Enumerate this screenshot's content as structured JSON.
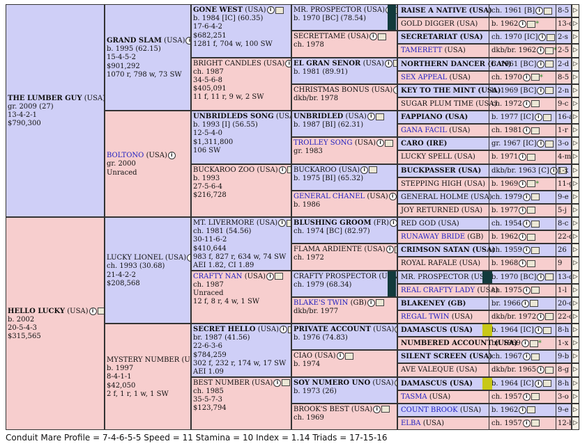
{
  "gen1": [
    {
      "name": "THE LUMBER GUY",
      "country": "(USA)",
      "lines": [
        "gr. 2009 (27)",
        "13-4-2-1",
        "$790,300"
      ],
      "sex": "m"
    },
    {
      "name": "HELLO LUCKY",
      "country": "(USA)",
      "lines": [
        "b. 2002",
        "20-5-4-3",
        "$315,565"
      ],
      "sex": "f"
    }
  ],
  "gen2": [
    {
      "name": "GRAND SLAM",
      "country": "(USA)",
      "lines": [
        "b. 1995 (62.15)",
        "15-4-5-2",
        "$901,292",
        "1070 r, 798 w, 73 SW"
      ],
      "sex": "m",
      "style": "bold"
    },
    {
      "name": "BOLTONO",
      "country": "(USA)",
      "lines": [
        "gr. 2000",
        "Unraced"
      ],
      "sex": "f",
      "style": "link"
    },
    {
      "name": "LUCKY LIONEL",
      "country": "(USA)",
      "lines": [
        "ch. 1993 (30.68)",
        "21-4-2-2",
        "$208,568"
      ],
      "sex": "m",
      "style": "pl"
    },
    {
      "name": "MYSTERY NUMBER",
      "country": "(USA)",
      "lines": [
        "b. 1997",
        "8-4-1-1",
        "$42,050",
        "2 f, 1 r, 1 w, 1 SW"
      ],
      "sex": "f",
      "style": "pl"
    }
  ],
  "gen3": [
    {
      "name": "GONE WEST",
      "country": "(USA)",
      "lines": [
        "b. 1984 [IC] (60.35)",
        "17-6-4-2",
        "$682,251",
        "1281 f, 704 w, 100 SW"
      ],
      "sex": "m",
      "style": "bold"
    },
    {
      "name": "BRIGHT CANDLES",
      "country": "(USA)",
      "lines": [
        "ch. 1987",
        "34-5-6-8",
        "$405,091",
        "11 f, 11 r, 9 w, 2 SW"
      ],
      "sex": "f",
      "style": "pl"
    },
    {
      "name": "UNBRIDLEDS SONG",
      "country": "(USA)",
      "lines": [
        "b. 1993 [I] (56.55)",
        "12-5-4-0",
        "$1,311,800",
        "106 SW"
      ],
      "sex": "m",
      "style": "bold"
    },
    {
      "name": "BUCKAROO ZOO",
      "country": "(USA)",
      "lines": [
        "b. 1993",
        "27-5-6-4",
        "$216,728"
      ],
      "sex": "f",
      "style": "pl"
    },
    {
      "name": "MT. LIVERMORE",
      "country": "(USA)",
      "lines": [
        "ch. 1981 (54.56)",
        "30-11-6-2",
        "$410,644",
        "983 f, 827 r, 634 w, 74 SW",
        "AEI 1.82, CI 1.89"
      ],
      "sex": "m",
      "style": "pl"
    },
    {
      "name": "CRAFTY NAN",
      "country": "(USA)",
      "lines": [
        "ch. 1987",
        "Unraced",
        "12 f, 8 r, 4 w, 1 SW"
      ],
      "sex": "f",
      "style": "link"
    },
    {
      "name": "SECRET HELLO",
      "country": "(USA)",
      "lines": [
        "br. 1987 (41.56)",
        "22-6-3-6",
        "$784,259",
        "302 f, 232 r, 174 w, 17 SW",
        "AEI 1.09"
      ],
      "sex": "m",
      "style": "bold"
    },
    {
      "name": "BEST NUMBER",
      "country": "(USA)",
      "lines": [
        "ch. 1985",
        "35-5-7-3",
        "$123,794"
      ],
      "sex": "f",
      "style": "pl"
    }
  ],
  "gen4": [
    {
      "name": "MR. PROSPECTOR",
      "country": "(USA)",
      "lines": [
        "b. 1970 [BC] (78.54)"
      ],
      "sex": "m",
      "style": "pl"
    },
    {
      "name": "SECRETTAME",
      "country": "(USA)",
      "lines": [
        "ch. 1978"
      ],
      "sex": "f",
      "style": "pl"
    },
    {
      "name": "EL GRAN SENOR",
      "country": "(USA)",
      "lines": [
        "b. 1981 (89.91)"
      ],
      "sex": "m",
      "style": "bold"
    },
    {
      "name": "CHRISTMAS BONUS",
      "country": "(USA)",
      "lines": [
        "dkb/br. 1978"
      ],
      "sex": "f",
      "style": "pl"
    },
    {
      "name": "UNBRIDLED",
      "country": "(USA)",
      "lines": [
        "b. 1987 [BI] (62.31)"
      ],
      "sex": "m",
      "style": "bold"
    },
    {
      "name": "TROLLEY SONG",
      "country": "(USA)",
      "lines": [
        "gr. 1983"
      ],
      "sex": "f",
      "style": "link"
    },
    {
      "name": "BUCKAROO",
      "country": "(USA)",
      "lines": [
        "b. 1975 [BI] (65.32)"
      ],
      "sex": "m",
      "style": "pl"
    },
    {
      "name": "GENERAL CHANEL",
      "country": "(USA)",
      "lines": [
        "b. 1986"
      ],
      "sex": "f",
      "style": "link"
    },
    {
      "name": "BLUSHING GROOM",
      "country": "(FR)",
      "lines": [
        "ch. 1974 [BC] (82.97)"
      ],
      "sex": "m",
      "style": "bold"
    },
    {
      "name": "FLAMA ARDIENTE",
      "country": "(USA)",
      "lines": [
        "ch. 1972"
      ],
      "sex": "f",
      "style": "pl"
    },
    {
      "name": "CRAFTY PROSPECTOR",
      "country": "(USA)",
      "lines": [
        "ch. 1979 (68.34)"
      ],
      "sex": "m",
      "style": "pl"
    },
    {
      "name": "BLAKE'S TWIN",
      "country": "(GB)",
      "lines": [
        "dkb/br. 1977"
      ],
      "sex": "f",
      "style": "link"
    },
    {
      "name": "PRIVATE ACCOUNT",
      "country": "(USA)",
      "lines": [
        "b. 1976 (74.83)"
      ],
      "sex": "m",
      "style": "bold"
    },
    {
      "name": "CIAO",
      "country": "(USA)",
      "lines": [
        "b. 1974"
      ],
      "sex": "f",
      "style": "pl"
    },
    {
      "name": "SOY NUMERO UNO",
      "country": "(USA)",
      "lines": [
        "b. 1973 (26)"
      ],
      "sex": "m",
      "style": "bold"
    },
    {
      "name": "BROOK'S BEST",
      "country": "(USA)",
      "lines": [
        "ch. 1969"
      ],
      "sex": "f",
      "style": "pl"
    }
  ],
  "gen5": [
    {
      "name": "RAISE A NATIVE (USA)",
      "year": "ch. 1961 [B]",
      "rec": "8-5",
      "sex": "m",
      "style": "bold"
    },
    {
      "name": "GOLD DIGGER (USA)",
      "year": "b. 1962",
      "rec": "13-c",
      "sex": "f",
      "style": "pl",
      "star": true
    },
    {
      "name": "SECRETARIAT (USA)",
      "year": "ch. 1970 [IC]",
      "rec": "2-s",
      "sex": "m",
      "style": "bold"
    },
    {
      "name": "TAMERETT",
      "country": "(USA)",
      "year": "dkb/br. 1962",
      "rec": "2-5",
      "sex": "f",
      "style": "link",
      "star": true
    },
    {
      "name": "NORTHERN DANCER (CAN)",
      "year": "b. 1961 [BC]",
      "rec": "2-d",
      "sex": "m",
      "style": "bold"
    },
    {
      "name": "SEX APPEAL",
      "country": "(USA)",
      "year": "ch. 1970",
      "rec": "8-5",
      "sex": "f",
      "style": "link",
      "star": true
    },
    {
      "name": "KEY TO THE MINT (USA)",
      "year": "b. 1969 [BC]",
      "rec": "2-n",
      "sex": "m",
      "style": "bold"
    },
    {
      "name": "SUGAR PLUM TIME (USA)",
      "year": "ch. 1972",
      "rec": "9-c",
      "sex": "f",
      "style": "pl"
    },
    {
      "name": "FAPPIANO (USA)",
      "year": "b. 1977 [IC]",
      "rec": "16-a",
      "sex": "m",
      "style": "bold"
    },
    {
      "name": "GANA FACIL",
      "country": "(USA)",
      "year": "ch. 1981",
      "rec": "1-r",
      "sex": "f",
      "style": "link"
    },
    {
      "name": "CARO (IRE)",
      "year": "gr. 1967 [IC]",
      "rec": "3-o",
      "sex": "m",
      "style": "bold"
    },
    {
      "name": "LUCKY SPELL (USA)",
      "year": "b. 1971",
      "rec": "4-m",
      "sex": "f",
      "style": "pl"
    },
    {
      "name": "BUCKPASSER (USA)",
      "year": "dkb/br. 1963 [C]",
      "rec": "1-x",
      "sex": "m",
      "style": "bold"
    },
    {
      "name": "STEPPING HIGH (USA)",
      "year": "b. 1969",
      "rec": "11-g",
      "sex": "f",
      "style": "pl",
      "star": true
    },
    {
      "name": "GENERAL HOLME (USA)",
      "year": "ch. 1979",
      "rec": "9-e",
      "sex": "m",
      "style": "pl"
    },
    {
      "name": "JOY RETURNED (USA)",
      "year": "b. 1977",
      "rec": "5-j",
      "sex": "f",
      "style": "pl"
    },
    {
      "name": "RED GOD (USA)",
      "year": "ch. 1954",
      "rec": "8-c",
      "sex": "m",
      "style": "pl"
    },
    {
      "name": "RUNAWAY BRIDE",
      "country": "(GB)",
      "year": "b. 1962",
      "rec": "22-d",
      "sex": "f",
      "style": "link"
    },
    {
      "name": "CRIMSON SATAN (USA)",
      "year": "ch. 1959",
      "rec": "26",
      "sex": "m",
      "style": "bold"
    },
    {
      "name": "ROYAL RAFALE (USA)",
      "year": "b. 1968",
      "rec": "9",
      "sex": "f",
      "style": "pl"
    },
    {
      "name": "MR. PROSPECTOR (USA)",
      "year": "b. 1970 [BC]",
      "rec": "13-c",
      "sex": "m",
      "style": "pl"
    },
    {
      "name": "REAL CRAFTY LADY",
      "country": "(USA)",
      "year": "ch. 1975",
      "rec": "1-l",
      "sex": "f",
      "style": "link"
    },
    {
      "name": "BLAKENEY (GB)",
      "year": "br. 1966",
      "rec": "20-c",
      "sex": "m",
      "style": "bold"
    },
    {
      "name": "REGAL TWIN",
      "country": "(USA)",
      "year": "dkb/br. 1972",
      "rec": "22-c",
      "sex": "f",
      "style": "link"
    },
    {
      "name": "DAMASCUS (USA)",
      "year": "b. 1964 [IC]",
      "rec": "8-h",
      "sex": "m",
      "style": "bold"
    },
    {
      "name": "NUMBERED ACCOUNT (USA)",
      "year": "br. 1969",
      "rec": "1-x",
      "sex": "f",
      "style": "bold",
      "star": true
    },
    {
      "name": "SILENT SCREEN (USA)",
      "year": "ch. 1967",
      "rec": "9-b",
      "sex": "m",
      "style": "bold"
    },
    {
      "name": "AVE VALEQUE (USA)",
      "year": "dkb/br. 1965",
      "rec": "8-g",
      "sex": "f",
      "style": "pl"
    },
    {
      "name": "DAMASCUS (USA)",
      "year": "b. 1964 [IC]",
      "rec": "8-h",
      "sex": "m",
      "style": "bold"
    },
    {
      "name": "TASMA",
      "country": "(USA)",
      "year": "ch. 1957",
      "rec": "3-o",
      "sex": "f",
      "style": "link"
    },
    {
      "name": "COUNT BROOK",
      "country": "(USA)",
      "year": "b. 1962",
      "rec": "9-e",
      "sex": "m",
      "style": "link"
    },
    {
      "name": "ELBA",
      "country": "(USA)",
      "year": "ch. 1957",
      "rec": "12-b",
      "sex": "f",
      "style": "link"
    }
  ],
  "footer": "Conduit Mare Profile = 7-4-6-5-5   Speed = 11   Stamina = 10   Index = 1.14   Triads = 17-15-16",
  "colors": {
    "male": "#cfcff7",
    "female": "#f7cece",
    "link": "#2020c0",
    "star": "#2a8a2a"
  }
}
